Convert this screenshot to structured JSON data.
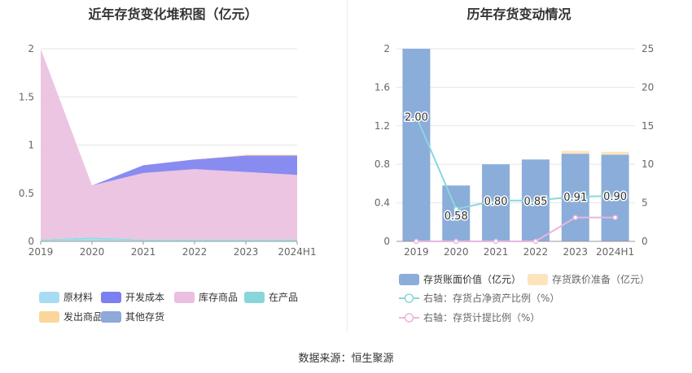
{
  "source_label": "数据来源：恒生聚源",
  "chart_data": [
    {
      "type": "area",
      "title": "近年存货变化堆积图（亿元）",
      "categories": [
        "2019",
        "2020",
        "2021",
        "2022",
        "2023",
        "2024H1"
      ],
      "ylim": [
        0,
        2
      ],
      "yticks": [
        "0",
        "0.5",
        "1",
        "1.5",
        "2"
      ],
      "grid": true,
      "legend_position": "bottom",
      "series": [
        {
          "name": "原材料",
          "color": "#a8dcf5",
          "values": [
            0.01,
            0.02,
            0.01,
            0.01,
            0.01,
            0.01
          ]
        },
        {
          "name": "开发成本",
          "color": "#7b7ff0",
          "values": [
            0,
            0,
            0.08,
            0.1,
            0.17,
            0.2
          ]
        },
        {
          "name": "库存商品",
          "color": "#eabfdf",
          "values": [
            1.98,
            0.54,
            0.69,
            0.73,
            0.7,
            0.67
          ]
        },
        {
          "name": "在产品",
          "color": "#88d6da",
          "values": [
            0.01,
            0.02,
            0.01,
            0.01,
            0.01,
            0.01
          ]
        },
        {
          "name": "发出商品",
          "color": "#fbd69a",
          "values": [
            0,
            0,
            0,
            0,
            0.01,
            0.01
          ]
        },
        {
          "name": "其他存货",
          "color": "#8ea8da",
          "values": [
            0,
            0,
            0,
            0,
            0,
            0
          ]
        }
      ]
    },
    {
      "type": "bar",
      "title": "历年存货变动情况",
      "categories": [
        "2019",
        "2020",
        "2021",
        "2022",
        "2023",
        "2024H1"
      ],
      "ylim": [
        0,
        2
      ],
      "yticks": [
        "0",
        "0.4",
        "0.8",
        "1.2",
        "1.6",
        "2"
      ],
      "y2lim": [
        0,
        25
      ],
      "y2ticks": [
        "0",
        "5",
        "10",
        "15",
        "20",
        "25"
      ],
      "grid": true,
      "legend_position": "bottom",
      "series": [
        {
          "name": "存货账面价值（亿元）",
          "kind": "bar",
          "color": "#8badda",
          "values": [
            2.0,
            0.58,
            0.8,
            0.85,
            0.91,
            0.9
          ],
          "labels": [
            "2.00",
            "0.58",
            "0.80",
            "0.85",
            "0.91",
            "0.90"
          ]
        },
        {
          "name": "存货跌价准备（亿元）",
          "kind": "bar-stacked",
          "color": "#fde4bd",
          "values": [
            0,
            0,
            0,
            0,
            0.03,
            0.03
          ]
        },
        {
          "name": "右轴：存货占净资产比例（%）",
          "kind": "line",
          "axis": "right",
          "color": "#8ad6dc",
          "values": [
            16.2,
            4.2,
            5.3,
            5.3,
            5.8,
            5.9
          ]
        },
        {
          "name": "右轴：存货计提比例（%）",
          "kind": "line",
          "axis": "right",
          "color": "#e8b7dd",
          "values": [
            0,
            0,
            0,
            0,
            3.1,
            3.1
          ]
        }
      ]
    }
  ]
}
